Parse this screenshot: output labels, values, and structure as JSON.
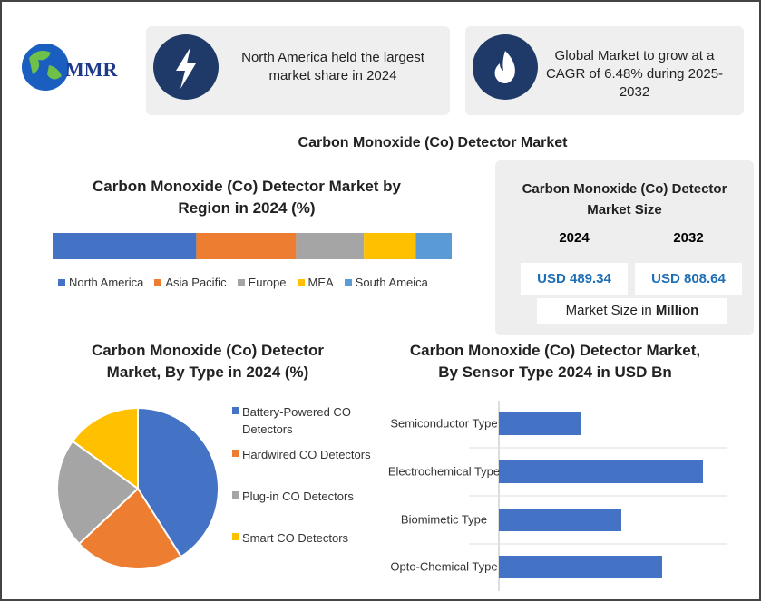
{
  "logo": "MMR",
  "cards": [
    {
      "text": "North America held the largest market share in 2024"
    },
    {
      "text": "Global Market to grow at a CAGR of 6.48% during 2025-2032"
    }
  ],
  "title": "Carbon Monoxide (Co) Detector Market",
  "market_size": {
    "title": "Carbon Monoxide (Co) Detector Market Size",
    "columns": [
      {
        "year": "2024",
        "value": "USD 489.34"
      },
      {
        "year": "2032",
        "value": "USD 808.64"
      }
    ],
    "note": "Market Size in",
    "unit": "Million"
  },
  "chart_data": [
    {
      "type": "stacked_bar",
      "title": "Carbon Monoxide (Co) Detector Market by Region in 2024 (%)",
      "series": [
        {
          "name": "North America",
          "color": "#4472c4",
          "values": [
            36
          ]
        },
        {
          "name": "Asia Pacific",
          "color": "#ed7d31",
          "values": [
            25
          ]
        },
        {
          "name": "Europe",
          "color": "#a5a5a5",
          "values": [
            17
          ]
        },
        {
          "name": "MEA",
          "color": "#ffc000",
          "values": [
            13
          ]
        },
        {
          "name": "South Ameica",
          "color": "#5b9bd5",
          "values": [
            9
          ]
        }
      ]
    },
    {
      "type": "pie",
      "title": "Carbon Monoxide (Co) Detector Market, By Type in 2024 (%)",
      "categories": [
        "Battery-Powered CO Detectors",
        "Hardwired CO Detectors",
        "Plug-in CO Detectors",
        "Smart CO Detectors"
      ],
      "values": [
        41,
        22,
        22,
        15
      ],
      "colors": [
        "#4472c4",
        "#ed7d31",
        "#a5a5a5",
        "#ffc000"
      ]
    },
    {
      "type": "hbar",
      "title": "Carbon Monoxide (Co) Detector Market, By Sensor Type 2024 in USD Bn",
      "categories": [
        "Semiconductor Type",
        "Electrochemical Type",
        "Biomimetic Type",
        "Opto-Chemical Type"
      ],
      "values": [
        40,
        100,
        60,
        80
      ],
      "color": "#4472c4"
    }
  ]
}
